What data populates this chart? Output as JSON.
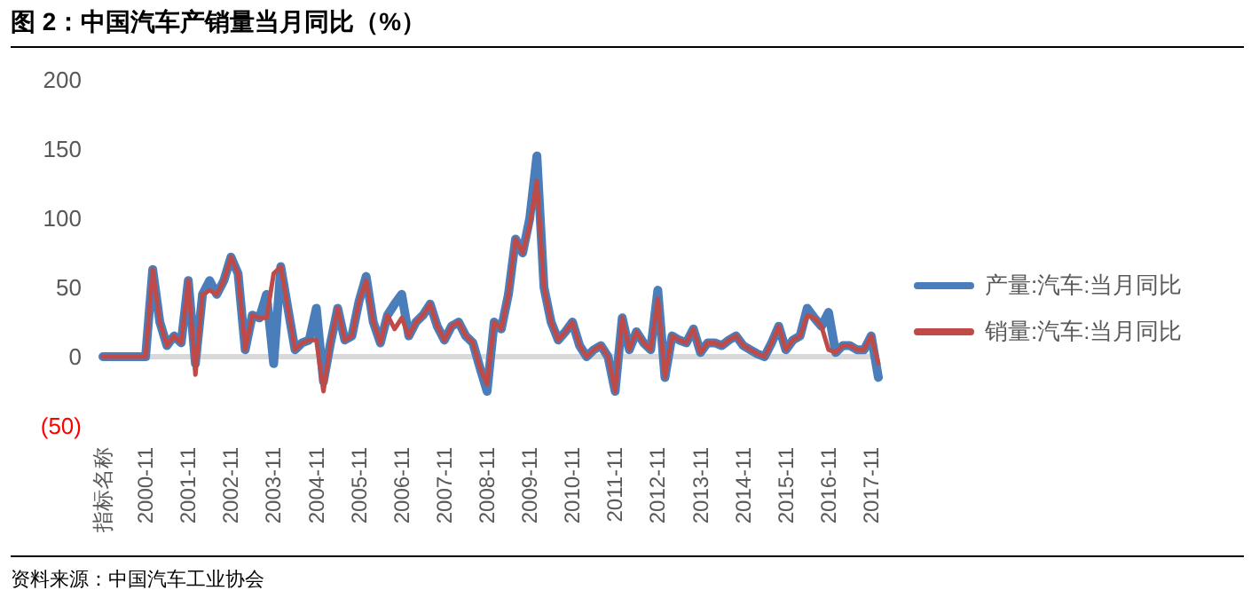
{
  "chart_data": {
    "type": "line",
    "title": "图 2：中国汽车产销量当月同比（%）",
    "annotations": [
      "资料来源：中国汽车工业协会"
    ],
    "categories": [
      "指标名称",
      null,
      null,
      null,
      null,
      null,
      "2000-11",
      null,
      null,
      null,
      null,
      null,
      "2001-11",
      null,
      null,
      null,
      null,
      null,
      "2002-11",
      null,
      null,
      null,
      null,
      null,
      "2003-11",
      null,
      null,
      null,
      null,
      null,
      "2004-11",
      null,
      null,
      null,
      null,
      null,
      "2005-11",
      null,
      null,
      null,
      null,
      null,
      "2006-11",
      null,
      null,
      null,
      null,
      null,
      "2007-11",
      null,
      null,
      null,
      null,
      null,
      "2008-11",
      null,
      null,
      null,
      null,
      null,
      "2009-11",
      null,
      null,
      null,
      null,
      null,
      "2010-11",
      null,
      null,
      null,
      null,
      null,
      "2011-11",
      null,
      null,
      null,
      null,
      null,
      "2012-11",
      null,
      null,
      null,
      null,
      null,
      "2013-11",
      null,
      null,
      null,
      null,
      null,
      "2014-11",
      null,
      null,
      null,
      null,
      null,
      "2015-11",
      null,
      null,
      null,
      null,
      null,
      "2016-11",
      null,
      null,
      null,
      null,
      null,
      "2017-11",
      null
    ],
    "series": [
      {
        "name": "产量:汽车:当月同比",
        "color": "#4a7ebb",
        "values": [
          0,
          0,
          0,
          0,
          0,
          0,
          0,
          63,
          25,
          8,
          15,
          10,
          55,
          -5,
          45,
          55,
          45,
          55,
          72,
          60,
          5,
          30,
          28,
          45,
          -5,
          65,
          35,
          5,
          10,
          12,
          35,
          -18,
          10,
          35,
          12,
          15,
          40,
          58,
          25,
          10,
          30,
          38,
          45,
          15,
          25,
          30,
          38,
          22,
          12,
          22,
          25,
          15,
          10,
          -8,
          -25,
          25,
          20,
          45,
          85,
          75,
          100,
          145,
          50,
          25,
          12,
          18,
          25,
          8,
          0,
          5,
          8,
          0,
          -25,
          28,
          5,
          18,
          10,
          5,
          48,
          -15,
          15,
          12,
          10,
          20,
          3,
          10,
          10,
          8,
          12,
          15,
          8,
          5,
          2,
          0,
          10,
          22,
          5,
          12,
          15,
          35,
          28,
          22,
          32,
          3,
          8,
          8,
          5,
          5,
          15,
          -15
        ]
      },
      {
        "name": "销量:汽车:当月同比",
        "color": "#be4b48",
        "values": [
          0,
          0,
          0,
          0,
          0,
          0,
          0,
          63,
          25,
          8,
          15,
          10,
          55,
          -13,
          45,
          48,
          45,
          55,
          72,
          60,
          5,
          30,
          28,
          28,
          60,
          65,
          35,
          5,
          10,
          12,
          12,
          -25,
          10,
          35,
          12,
          15,
          40,
          55,
          25,
          10,
          30,
          20,
          28,
          15,
          25,
          30,
          38,
          22,
          12,
          22,
          25,
          15,
          10,
          -8,
          -20,
          25,
          20,
          45,
          85,
          75,
          95,
          127,
          50,
          25,
          12,
          18,
          25,
          8,
          0,
          5,
          8,
          0,
          -25,
          28,
          5,
          18,
          10,
          5,
          42,
          -15,
          15,
          12,
          10,
          20,
          3,
          10,
          10,
          8,
          12,
          15,
          8,
          5,
          2,
          0,
          10,
          22,
          5,
          12,
          15,
          30,
          28,
          22,
          5,
          3,
          8,
          8,
          5,
          5,
          15,
          -5
        ]
      }
    ],
    "ylim": [
      -50,
      200
    ],
    "yticks": [
      {
        "value": -50,
        "label": "(50)"
      },
      0,
      50,
      100,
      150,
      200
    ],
    "ref_lines": [
      {
        "axis": "y",
        "value": 0,
        "color": "#d9d9d9"
      }
    ],
    "grid": false,
    "legend": "right",
    "marker": "none",
    "line_style": "solid"
  }
}
